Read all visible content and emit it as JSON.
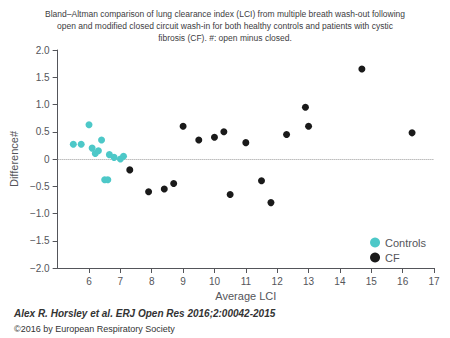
{
  "chart_data": {
    "type": "scatter",
    "title": "Bland–Altman comparison of lung clearance index (LCI) from multiple breath wash-out following\nopen and modified closed circuit wash-in for both healthy controls and patients with cystic\nfibrosis (CF). #: open minus closed.",
    "x_label": "Average LCI",
    "y_label": "Difference#",
    "xlim": [
      5,
      17
    ],
    "ylim": [
      -2.0,
      2.0
    ],
    "xticks": [
      6,
      7,
      8,
      9,
      10,
      11,
      12,
      13,
      14,
      15,
      16,
      17
    ],
    "yticks": [
      {
        "value": -2.0,
        "label": "−2.0"
      },
      {
        "value": -1.5,
        "label": "−1.5"
      },
      {
        "value": -1.0,
        "label": "−1.0"
      },
      {
        "value": -0.5,
        "label": "−0.5"
      },
      0,
      {
        "value": 0.5,
        "label": "0.5"
      },
      {
        "value": 1.0,
        "label": "1.0"
      },
      {
        "value": 1.5,
        "label": "1.5"
      },
      {
        "value": 2.0,
        "label": "2.0"
      }
    ],
    "series": [
      {
        "name": "Controls",
        "color": "#4dc8c8",
        "marker": "circle",
        "x": [
          5.5,
          5.75,
          6.0,
          6.1,
          6.2,
          6.3,
          6.4,
          6.5,
          6.6,
          6.65,
          6.8,
          7.0,
          7.1
        ],
        "values": [
          0.27,
          0.27,
          0.63,
          0.2,
          0.1,
          0.15,
          0.35,
          -0.38,
          -0.38,
          0.08,
          0.03,
          0.0,
          0.05
        ]
      },
      {
        "name": "CF",
        "color": "#1a1a1a",
        "marker": "circle",
        "x": [
          7.3,
          7.9,
          8.4,
          8.7,
          9.0,
          9.5,
          10.0,
          10.3,
          10.5,
          11.0,
          11.5,
          11.8,
          12.3,
          12.9,
          13.0,
          14.7,
          16.3
        ],
        "values": [
          -0.2,
          -0.6,
          -0.55,
          -0.45,
          0.6,
          0.35,
          0.4,
          0.5,
          -0.65,
          0.3,
          -0.4,
          -0.8,
          0.45,
          0.95,
          0.6,
          1.65,
          0.48
        ]
      }
    ],
    "hline": {
      "y": 0,
      "color": "#999999",
      "line_style": "dotted"
    },
    "annotations": [
      "Alex R. Horsley et al. ERJ Open Res 2016;2:00042-2015",
      "©2016 by European Respiratory Society"
    ],
    "legend": "lower right",
    "grid": false
  }
}
